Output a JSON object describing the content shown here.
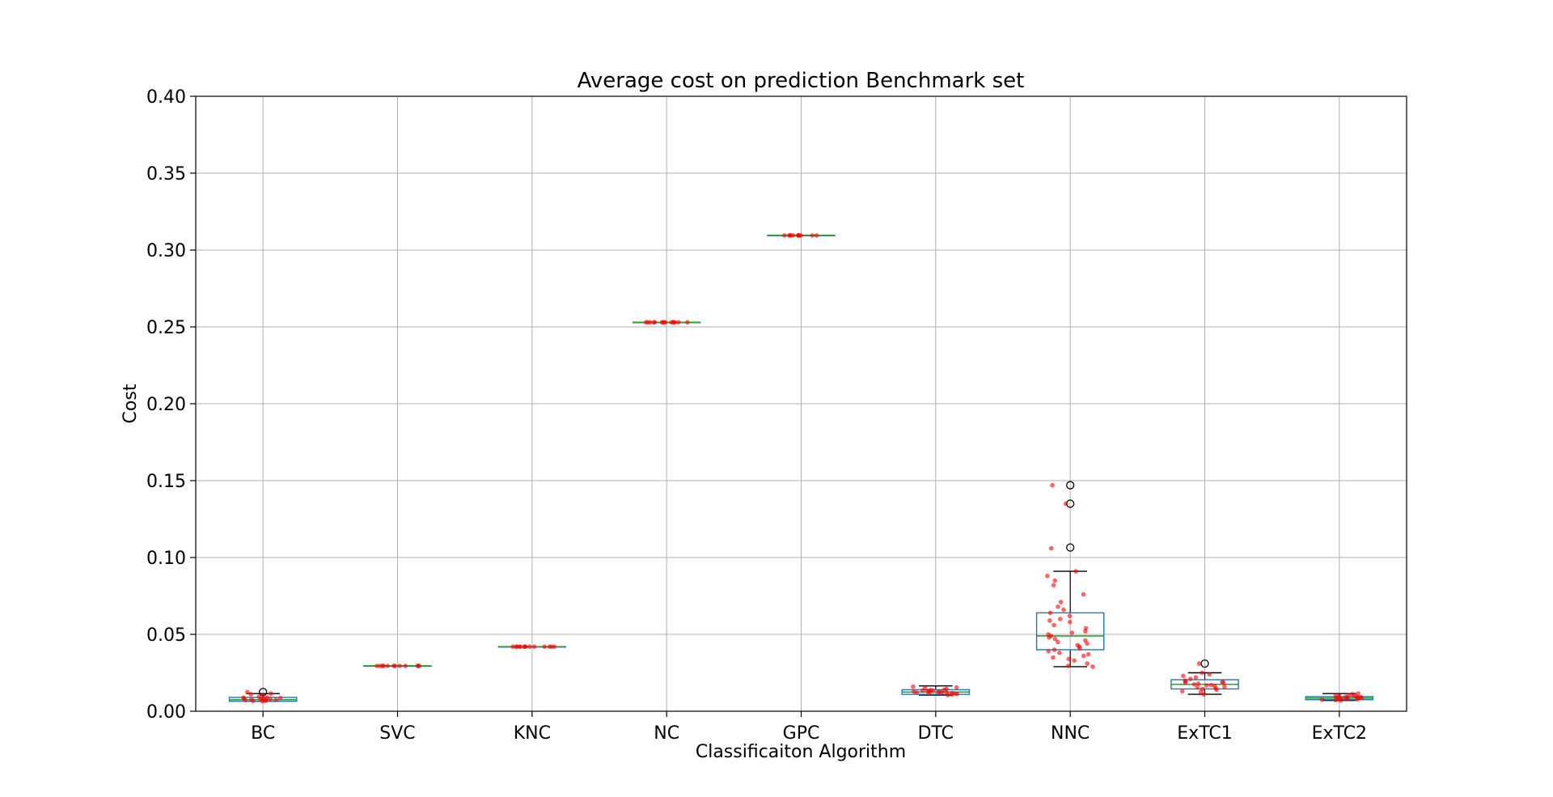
{
  "chart_data": {
    "type": "box",
    "title": "Average cost on prediction Benchmark set",
    "xlabel": "Classificaiton Algorithm",
    "ylabel": "Cost",
    "ylim": [
      0.0,
      0.4
    ],
    "yticks": [
      "0.00",
      "0.05",
      "0.10",
      "0.15",
      "0.20",
      "0.25",
      "0.30",
      "0.35",
      "0.40"
    ],
    "grid": true,
    "categories": [
      "BC",
      "SVC",
      "KNC",
      "NC",
      "GPC",
      "DTC",
      "NNC",
      "ExTC1",
      "ExTC2"
    ],
    "boxes": [
      {
        "name": "BC",
        "whislo": 0.0065,
        "q1": 0.0065,
        "median": 0.0075,
        "q3": 0.009,
        "whishi": 0.0115,
        "fliers": [
          0.0125
        ]
      },
      {
        "name": "SVC",
        "whislo": 0.0295,
        "q1": 0.0295,
        "median": 0.0295,
        "q3": 0.0295,
        "whishi": 0.0295,
        "fliers": []
      },
      {
        "name": "KNC",
        "whislo": 0.042,
        "q1": 0.042,
        "median": 0.042,
        "q3": 0.042,
        "whishi": 0.042,
        "fliers": []
      },
      {
        "name": "NC",
        "whislo": 0.253,
        "q1": 0.253,
        "median": 0.253,
        "q3": 0.253,
        "whishi": 0.253,
        "fliers": []
      },
      {
        "name": "GPC",
        "whislo": 0.3095,
        "q1": 0.3095,
        "median": 0.3095,
        "q3": 0.3095,
        "whishi": 0.3095,
        "fliers": []
      },
      {
        "name": "DTC",
        "whislo": 0.0105,
        "q1": 0.011,
        "median": 0.0125,
        "q3": 0.014,
        "whishi": 0.0165,
        "fliers": []
      },
      {
        "name": "NNC",
        "whislo": 0.029,
        "q1": 0.04,
        "median": 0.049,
        "q3": 0.064,
        "whishi": 0.091,
        "fliers": [
          0.1065,
          0.135,
          0.147
        ]
      },
      {
        "name": "ExTC1",
        "whislo": 0.011,
        "q1": 0.0145,
        "median": 0.0175,
        "q3": 0.0205,
        "whishi": 0.025,
        "fliers": [
          0.031
        ]
      },
      {
        "name": "ExTC2",
        "whislo": 0.007,
        "q1": 0.0075,
        "median": 0.0085,
        "q3": 0.0095,
        "whishi": 0.0115,
        "fliers": []
      }
    ],
    "points": [
      {
        "name": "BC",
        "values": [
          0.0065,
          0.007,
          0.0072,
          0.0075,
          0.0078,
          0.008,
          0.0083,
          0.0085,
          0.009,
          0.0095,
          0.0068,
          0.0074,
          0.0079,
          0.0088,
          0.0102,
          0.011,
          0.0115,
          0.0125,
          0.007,
          0.0076
        ]
      },
      {
        "name": "SVC",
        "values": [
          0.0295,
          0.0295,
          0.0295,
          0.0295,
          0.0295,
          0.0295,
          0.0295,
          0.0295,
          0.0295,
          0.0295,
          0.0295,
          0.0295
        ]
      },
      {
        "name": "KNC",
        "values": [
          0.042,
          0.042,
          0.042,
          0.042,
          0.042,
          0.042,
          0.042,
          0.042,
          0.042,
          0.042,
          0.042,
          0.042,
          0.042,
          0.042
        ]
      },
      {
        "name": "NC",
        "values": [
          0.253,
          0.253,
          0.253,
          0.253,
          0.253,
          0.253,
          0.253,
          0.253,
          0.253,
          0.253,
          0.253,
          0.253,
          0.253,
          0.253,
          0.253
        ]
      },
      {
        "name": "GPC",
        "values": [
          0.3095,
          0.3095,
          0.3095,
          0.3095,
          0.3095,
          0.3095,
          0.3095,
          0.3095,
          0.3095,
          0.3095,
          0.3095,
          0.3095
        ]
      },
      {
        "name": "DTC",
        "values": [
          0.0105,
          0.011,
          0.0112,
          0.0115,
          0.0118,
          0.012,
          0.0122,
          0.0125,
          0.0128,
          0.013,
          0.0132,
          0.0135,
          0.0138,
          0.014,
          0.0145,
          0.015,
          0.0155,
          0.016,
          0.0118,
          0.0126,
          0.0133,
          0.0121
        ]
      },
      {
        "name": "NNC",
        "values": [
          0.029,
          0.0295,
          0.031,
          0.033,
          0.034,
          0.035,
          0.036,
          0.037,
          0.038,
          0.039,
          0.04,
          0.041,
          0.042,
          0.043,
          0.044,
          0.045,
          0.046,
          0.047,
          0.048,
          0.049,
          0.05,
          0.051,
          0.052,
          0.054,
          0.056,
          0.058,
          0.059,
          0.06,
          0.062,
          0.064,
          0.066,
          0.068,
          0.071,
          0.076,
          0.082,
          0.085,
          0.088,
          0.091,
          0.106,
          0.135,
          0.147
        ]
      },
      {
        "name": "ExTC1",
        "values": [
          0.011,
          0.0125,
          0.013,
          0.014,
          0.0145,
          0.015,
          0.0155,
          0.016,
          0.0165,
          0.017,
          0.0175,
          0.018,
          0.0185,
          0.019,
          0.0195,
          0.02,
          0.021,
          0.022,
          0.023,
          0.024,
          0.025,
          0.031,
          0.0168,
          0.0188
        ]
      },
      {
        "name": "ExTC2",
        "values": [
          0.007,
          0.0072,
          0.0075,
          0.0078,
          0.008,
          0.0082,
          0.0085,
          0.0088,
          0.009,
          0.0092,
          0.0095,
          0.0098,
          0.01,
          0.0105,
          0.011,
          0.0115,
          0.0079,
          0.0087,
          0.0093,
          0.0101
        ]
      }
    ],
    "colors": {
      "box": "#1f77b4",
      "median": "#2ca02c",
      "points": "#ff0000",
      "grid": "#b0b0b0"
    }
  }
}
